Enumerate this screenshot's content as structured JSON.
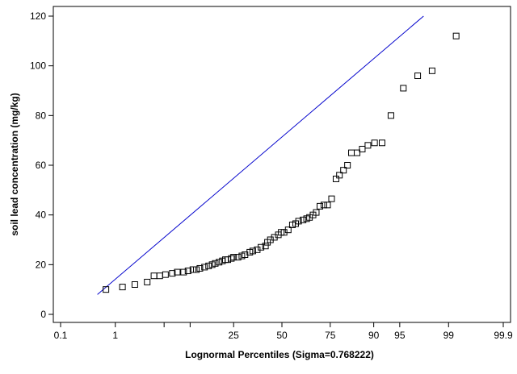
{
  "chart_data": {
    "type": "scatter",
    "xlabel": "Lognormal Percentiles (Sigma=0.768222)",
    "ylabel": "soil lead concentration (mg/kg)",
    "x_scale": "probit-percentile",
    "x_ticks": [
      {
        "value": 0.1,
        "label": "0.1"
      },
      {
        "value": 1,
        "label": "1"
      },
      {
        "value": 5,
        "label": ""
      },
      {
        "value": 10,
        "label": ""
      },
      {
        "value": 25,
        "label": "25"
      },
      {
        "value": 50,
        "label": "50"
      },
      {
        "value": 75,
        "label": "75"
      },
      {
        "value": 90,
        "label": "90"
      },
      {
        "value": 95,
        "label": "95"
      },
      {
        "value": 99,
        "label": "99"
      },
      {
        "value": 99.9,
        "label": "99.9"
      }
    ],
    "xlim": [
      0.1,
      99.9
    ],
    "ylim": [
      0,
      120
    ],
    "y_ticks": [
      0,
      20,
      40,
      60,
      80,
      100,
      120
    ],
    "grid": false,
    "fit_line": {
      "points": [
        [
          0.5,
          8
        ],
        [
          97.6,
          120
        ]
      ],
      "color": "#0000cc"
    },
    "marker": "open-square",
    "series": [
      {
        "points": [
          [
            0.7,
            10
          ],
          [
            1.3,
            11
          ],
          [
            2.0,
            12
          ],
          [
            3.0,
            13
          ],
          [
            3.7,
            15.5
          ],
          [
            4.4,
            15.5
          ],
          [
            5.2,
            16
          ],
          [
            6.3,
            16.5
          ],
          [
            7.2,
            17
          ],
          [
            8.5,
            17
          ],
          [
            9.5,
            17.5
          ],
          [
            10.7,
            18
          ],
          [
            11.6,
            18
          ],
          [
            12.6,
            18.5
          ],
          [
            14.0,
            19
          ],
          [
            15.3,
            19.5
          ],
          [
            16.5,
            20
          ],
          [
            17.6,
            20.5
          ],
          [
            19.0,
            21
          ],
          [
            20.3,
            21.5
          ],
          [
            21.5,
            22
          ],
          [
            22.5,
            22
          ],
          [
            24.0,
            22.5
          ],
          [
            25.0,
            23
          ],
          [
            27.0,
            23
          ],
          [
            28.8,
            23.5
          ],
          [
            30.3,
            24
          ],
          [
            32.7,
            25
          ],
          [
            34.2,
            25.5
          ],
          [
            36.5,
            26
          ],
          [
            38.5,
            27
          ],
          [
            40.9,
            27.5
          ],
          [
            42.0,
            29
          ],
          [
            43.6,
            30
          ],
          [
            45.8,
            31
          ],
          [
            48.0,
            32
          ],
          [
            49.6,
            33
          ],
          [
            51.2,
            33
          ],
          [
            53.5,
            34
          ],
          [
            55.8,
            36
          ],
          [
            57.6,
            36.5
          ],
          [
            59.2,
            37.5
          ],
          [
            61.6,
            38
          ],
          [
            63.5,
            38.5
          ],
          [
            65.0,
            39
          ],
          [
            66.8,
            40
          ],
          [
            68.4,
            41
          ],
          [
            70.2,
            43.5
          ],
          [
            72.1,
            44
          ],
          [
            73.8,
            44
          ],
          [
            75.6,
            46.5
          ],
          [
            77.5,
            54.5
          ],
          [
            78.9,
            56
          ],
          [
            80.5,
            58
          ],
          [
            82.0,
            60
          ],
          [
            83.4,
            65
          ],
          [
            85.3,
            65
          ],
          [
            86.9,
            66.5
          ],
          [
            88.5,
            68
          ],
          [
            90.2,
            69
          ],
          [
            91.9,
            69
          ],
          [
            93.6,
            80
          ],
          [
            95.5,
            91
          ],
          [
            97.1,
            96
          ],
          [
            98.2,
            98
          ],
          [
            99.25,
            112
          ]
        ]
      }
    ]
  }
}
